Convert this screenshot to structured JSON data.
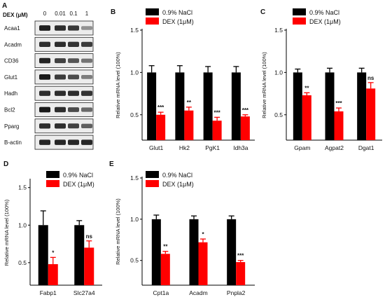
{
  "colors": {
    "control": "#000000",
    "treated": "#ff0000"
  },
  "panel_a": {
    "letter": "A",
    "unit_label": "DEX (μM)",
    "concentrations": [
      "0",
      "0.01",
      "0.1",
      "1"
    ],
    "blots": [
      {
        "label": "Acaa1",
        "intensity": [
          0.92,
          0.85,
          0.8,
          0.35
        ]
      },
      {
        "label": "Acadm",
        "intensity": [
          0.85,
          0.85,
          0.82,
          0.78
        ]
      },
      {
        "label": "CD36",
        "intensity": [
          0.9,
          0.75,
          0.65,
          0.5
        ]
      },
      {
        "label": "Glut1",
        "intensity": [
          0.95,
          0.78,
          0.7,
          0.45
        ]
      },
      {
        "label": "Hadh",
        "intensity": [
          0.85,
          0.85,
          0.85,
          0.82
        ]
      },
      {
        "label": "Bcl2",
        "intensity": [
          0.95,
          0.85,
          0.7,
          0.55
        ]
      },
      {
        "label": "Pparg",
        "intensity": [
          0.85,
          0.85,
          0.75,
          0.6
        ]
      },
      {
        "label": "B-actin",
        "intensity": [
          0.88,
          0.88,
          0.88,
          0.88
        ]
      }
    ]
  },
  "chart_data": [
    {
      "panel": "B",
      "type": "bar",
      "ylabel": "Relative mRNA level (100%)",
      "ylim": [
        0.2,
        1.5
      ],
      "yticks": [
        "0.5",
        "1.0",
        "1.5"
      ],
      "legend": [
        "0.9% NaCl",
        "DEX (1μM)"
      ],
      "categories": [
        "Glut1",
        "Hk2",
        "PgK1",
        "Idh3a"
      ],
      "series": [
        {
          "name": "0.9% NaCl",
          "values": [
            1.0,
            1.0,
            1.0,
            1.0
          ],
          "errors": [
            0.08,
            0.08,
            0.07,
            0.07
          ]
        },
        {
          "name": "DEX (1μM)",
          "values": [
            0.5,
            0.55,
            0.43,
            0.48
          ],
          "errors": [
            0.03,
            0.04,
            0.04,
            0.02
          ]
        }
      ],
      "significance": [
        "***",
        "**",
        "***",
        "***"
      ]
    },
    {
      "panel": "C",
      "type": "bar",
      "ylabel": "Relative mRNA level (100%)",
      "ylim": [
        0.2,
        1.5
      ],
      "yticks": [
        "0.5",
        "1.0",
        "1.5"
      ],
      "legend": [
        "0.9% NaCl",
        "DEX (1μM)"
      ],
      "categories": [
        "Gpam",
        "Agpat2",
        "Dgat1"
      ],
      "series": [
        {
          "name": "0.9% NaCl",
          "values": [
            1.0,
            1.0,
            1.0
          ],
          "errors": [
            0.04,
            0.05,
            0.05
          ]
        },
        {
          "name": "DEX (1μM)",
          "values": [
            0.73,
            0.54,
            0.81
          ],
          "errors": [
            0.03,
            0.04,
            0.07
          ]
        }
      ],
      "significance": [
        "**",
        "***",
        "ns"
      ]
    },
    {
      "panel": "D",
      "type": "bar",
      "ylabel": "Relative mRNA level (100%)",
      "ylim": [
        0.2,
        1.6
      ],
      "yticks": [
        "0.5",
        "1.0",
        "1.5"
      ],
      "legend": [
        "0.9% NaCl",
        "DEX (1μM)"
      ],
      "categories": [
        "Fabp1",
        "Slc27a4"
      ],
      "series": [
        {
          "name": "0.9% NaCl",
          "values": [
            1.0,
            1.0
          ],
          "errors": [
            0.19,
            0.06
          ]
        },
        {
          "name": "DEX (1μM)",
          "values": [
            0.48,
            0.7
          ],
          "errors": [
            0.09,
            0.09
          ]
        }
      ],
      "significance": [
        "*",
        "ns"
      ]
    },
    {
      "panel": "E",
      "type": "bar",
      "ylabel": "Relative mRNA level (100%)",
      "ylim": [
        0.2,
        1.5
      ],
      "yticks": [
        "0.5",
        "1.0",
        "1.5"
      ],
      "legend": [
        "0.9% NaCl",
        "DEX (1μM)"
      ],
      "categories": [
        "Cpt1a",
        "Acadm",
        "Pnpla2"
      ],
      "series": [
        {
          "name": "0.9% NaCl",
          "values": [
            1.0,
            1.0,
            1.0
          ],
          "errors": [
            0.05,
            0.04,
            0.04
          ]
        },
        {
          "name": "DEX (1μM)",
          "values": [
            0.58,
            0.72,
            0.48
          ],
          "errors": [
            0.03,
            0.04,
            0.02
          ]
        }
      ],
      "significance": [
        "**",
        "*",
        "***"
      ]
    }
  ]
}
